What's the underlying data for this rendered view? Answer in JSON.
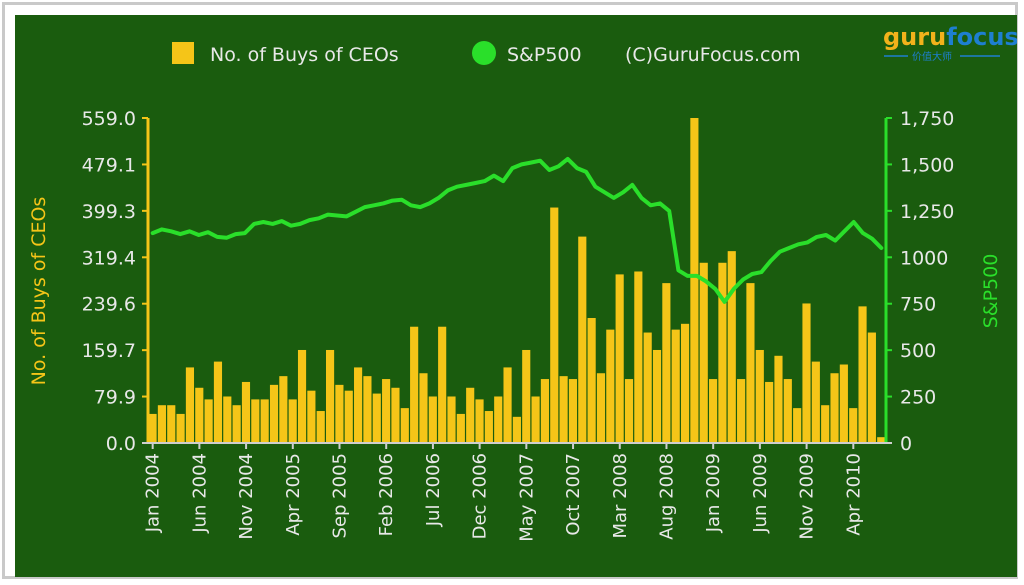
{
  "chart_data": {
    "type": "bar",
    "legend": {
      "bars_label": "No. of Buys of CEOs",
      "line_label": "S&P500",
      "credit": "(C)GuruFocus.com"
    },
    "logo": {
      "part1": "guru",
      "part2": "focus",
      "subtitle": "价值大师"
    },
    "ylabel_left": "No. of Buys of CEOs",
    "ylabel_right": "S&P500",
    "left_ticks": [
      "559.0",
      "479.1",
      "399.3",
      "319.4",
      "239.6",
      "159.7",
      "79.9",
      "0.0"
    ],
    "left_tick_values": [
      559.0,
      479.1,
      399.3,
      319.4,
      239.6,
      159.7,
      79.9,
      0.0
    ],
    "ylim_left": [
      0,
      559
    ],
    "right_ticks": [
      "1,750",
      "1,500",
      "1,250",
      "1000",
      "750",
      "500",
      "250",
      "0"
    ],
    "right_tick_values": [
      1750,
      1500,
      1250,
      1000,
      750,
      500,
      250,
      0
    ],
    "ylim_right": [
      0,
      1750
    ],
    "x_tick_labels": [
      "Jan 2004",
      "Jun 2004",
      "Nov 2004",
      "Apr 2005",
      "Sep 2005",
      "Feb 2006",
      "Jul 2006",
      "Dec 2006",
      "May 2007",
      "Oct 2007",
      "Mar 2008",
      "Aug 2008",
      "Jan 2009",
      "Jun 2009",
      "Nov 2009",
      "Apr 2010"
    ],
    "x_tick_indices": [
      0,
      5,
      10,
      15,
      20,
      25,
      30,
      35,
      40,
      45,
      50,
      55,
      60,
      65,
      70,
      75
    ],
    "series": [
      {
        "name": "No. of Buys of CEOs",
        "type": "bar",
        "values": [
          50,
          65,
          65,
          50,
          130,
          95,
          75,
          140,
          80,
          65,
          105,
          75,
          75,
          100,
          115,
          75,
          160,
          90,
          55,
          160,
          100,
          90,
          130,
          115,
          85,
          110,
          95,
          60,
          200,
          120,
          80,
          200,
          80,
          50,
          95,
          75,
          55,
          80,
          130,
          45,
          160,
          80,
          110,
          405,
          115,
          110,
          355,
          215,
          120,
          195,
          290,
          110,
          295,
          190,
          160,
          275,
          195,
          205,
          559,
          310,
          110,
          310,
          330,
          110,
          275,
          160,
          105,
          150,
          110,
          60,
          240,
          140,
          65,
          120,
          135,
          60,
          235,
          190,
          10
        ]
      },
      {
        "name": "S&P500",
        "type": "line",
        "values": [
          1130,
          1150,
          1140,
          1125,
          1140,
          1120,
          1135,
          1110,
          1105,
          1125,
          1130,
          1180,
          1190,
          1180,
          1195,
          1170,
          1180,
          1200,
          1210,
          1230,
          1225,
          1220,
          1245,
          1270,
          1280,
          1290,
          1305,
          1310,
          1280,
          1270,
          1290,
          1320,
          1360,
          1380,
          1390,
          1400,
          1410,
          1440,
          1410,
          1480,
          1500,
          1510,
          1520,
          1470,
          1490,
          1530,
          1480,
          1460,
          1380,
          1350,
          1320,
          1350,
          1390,
          1320,
          1280,
          1290,
          1250,
          930,
          900,
          900,
          870,
          830,
          760,
          830,
          880,
          910,
          920,
          980,
          1030,
          1050,
          1070,
          1080,
          1110,
          1120,
          1090,
          1140,
          1190,
          1130,
          1100,
          1050
        ]
      }
    ]
  }
}
